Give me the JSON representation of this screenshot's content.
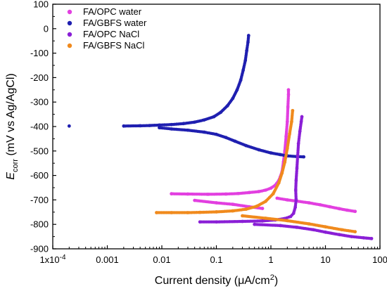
{
  "chart_data": {
    "type": "scatter",
    "xscale": "log",
    "xlim": [
      0.0001,
      100
    ],
    "ylim": [
      -900,
      100
    ],
    "xticks": [
      {
        "value": 0.0001,
        "label": "1x10",
        "sup": "-4"
      },
      {
        "value": 0.001,
        "label": "0.001"
      },
      {
        "value": 0.01,
        "label": "0.01"
      },
      {
        "value": 0.1,
        "label": "0.1"
      },
      {
        "value": 1,
        "label": "1"
      },
      {
        "value": 10,
        "label": "10"
      },
      {
        "value": 100,
        "label": "100"
      }
    ],
    "yticks": [
      100,
      0,
      -100,
      -200,
      -300,
      -400,
      -500,
      -600,
      -700,
      -800,
      -900
    ],
    "xlabel": {
      "pre": "Current density (",
      "unit": "μA/cm",
      "sup": "2",
      "post": ")"
    },
    "ylabel": {
      "main": "E",
      "sub": "corr",
      "rest": " (mV vs Ag/AgCl)"
    },
    "legend_position": "top-left",
    "grid": false,
    "series": [
      {
        "name": "FA/OPC water",
        "color": "#e23fe0",
        "points": [
          [
            0.015,
            -675
          ],
          [
            0.03,
            -676
          ],
          [
            0.07,
            -677
          ],
          [
            0.15,
            -676
          ],
          [
            0.25,
            -674
          ],
          [
            0.4,
            -670
          ],
          [
            0.6,
            -666
          ],
          [
            0.8,
            -660
          ],
          [
            1.0,
            -652
          ],
          [
            1.2,
            -640
          ],
          [
            1.4,
            -620
          ],
          [
            1.6,
            -585
          ],
          [
            1.7,
            -545
          ],
          [
            1.8,
            -500
          ],
          [
            1.9,
            -440
          ],
          [
            2.0,
            -380
          ],
          [
            2.05,
            -320
          ],
          [
            2.1,
            -270
          ],
          [
            2.1,
            -250
          ],
          [
            1.3,
            -693
          ],
          [
            2.0,
            -700
          ],
          [
            3,
            -705
          ],
          [
            5,
            -712
          ],
          [
            8,
            -720
          ],
          [
            12,
            -728
          ],
          [
            18,
            -736
          ],
          [
            25,
            -742
          ],
          [
            35,
            -747
          ],
          [
            0.04,
            -702
          ],
          [
            0.1,
            -712
          ],
          [
            0.2,
            -718
          ],
          [
            0.4,
            -728
          ],
          [
            0.7,
            -735
          ]
        ]
      },
      {
        "name": "FA/GBFS water",
        "color": "#1f1fb0",
        "points": [
          [
            0.0002,
            -398
          ],
          [
            0.002,
            -398
          ],
          [
            0.004,
            -397
          ],
          [
            0.006,
            -396
          ],
          [
            0.009,
            -394
          ],
          [
            0.015,
            -392
          ],
          [
            0.025,
            -388
          ],
          [
            0.04,
            -382
          ],
          [
            0.06,
            -373
          ],
          [
            0.09,
            -360
          ],
          [
            0.12,
            -342
          ],
          [
            0.16,
            -315
          ],
          [
            0.2,
            -285
          ],
          [
            0.24,
            -250
          ],
          [
            0.28,
            -210
          ],
          [
            0.31,
            -170
          ],
          [
            0.34,
            -130
          ],
          [
            0.36,
            -90
          ],
          [
            0.38,
            -55
          ],
          [
            0.39,
            -28
          ],
          [
            0.009,
            -405
          ],
          [
            0.015,
            -410
          ],
          [
            0.03,
            -415
          ],
          [
            0.06,
            -423
          ],
          [
            0.1,
            -432
          ],
          [
            0.15,
            -445
          ],
          [
            0.22,
            -460
          ],
          [
            0.35,
            -478
          ],
          [
            0.6,
            -495
          ],
          [
            1.0,
            -508
          ],
          [
            1.5,
            -515
          ],
          [
            2.0,
            -520
          ],
          [
            3.0,
            -523
          ],
          [
            4.0,
            -524
          ]
        ]
      },
      {
        "name": "FA/OPC NaCl",
        "color": "#8a1fd6",
        "points": [
          [
            0.05,
            -790
          ],
          [
            0.1,
            -790
          ],
          [
            0.3,
            -788
          ],
          [
            0.7,
            -786
          ],
          [
            1.2,
            -782
          ],
          [
            1.8,
            -776
          ],
          [
            2.3,
            -768
          ],
          [
            2.6,
            -755
          ],
          [
            2.8,
            -730
          ],
          [
            2.9,
            -700
          ],
          [
            2.85,
            -660
          ],
          [
            2.9,
            -620
          ],
          [
            3.0,
            -570
          ],
          [
            3.1,
            -520
          ],
          [
            3.2,
            -470
          ],
          [
            3.4,
            -420
          ],
          [
            3.6,
            -380
          ],
          [
            3.7,
            -360
          ],
          [
            0.5,
            -800
          ],
          [
            1.5,
            -805
          ],
          [
            3,
            -812
          ],
          [
            6,
            -822
          ],
          [
            10,
            -832
          ],
          [
            18,
            -842
          ],
          [
            30,
            -850
          ],
          [
            50,
            -855
          ],
          [
            70,
            -858
          ]
        ]
      },
      {
        "name": "FA/GBFS NaCl",
        "color": "#f08a1d",
        "points": [
          [
            0.008,
            -752
          ],
          [
            0.015,
            -752
          ],
          [
            0.03,
            -752
          ],
          [
            0.05,
            -751
          ],
          [
            0.1,
            -749
          ],
          [
            0.2,
            -745
          ],
          [
            0.35,
            -738
          ],
          [
            0.55,
            -726
          ],
          [
            0.8,
            -706
          ],
          [
            1.1,
            -675
          ],
          [
            1.4,
            -630
          ],
          [
            1.6,
            -590
          ],
          [
            1.8,
            -545
          ],
          [
            2.0,
            -490
          ],
          [
            2.2,
            -430
          ],
          [
            2.4,
            -380
          ],
          [
            2.5,
            -335
          ],
          [
            0.3,
            -765
          ],
          [
            0.8,
            -775
          ],
          [
            2,
            -785
          ],
          [
            5,
            -798
          ],
          [
            10,
            -810
          ],
          [
            20,
            -822
          ],
          [
            35,
            -830
          ]
        ]
      }
    ]
  }
}
